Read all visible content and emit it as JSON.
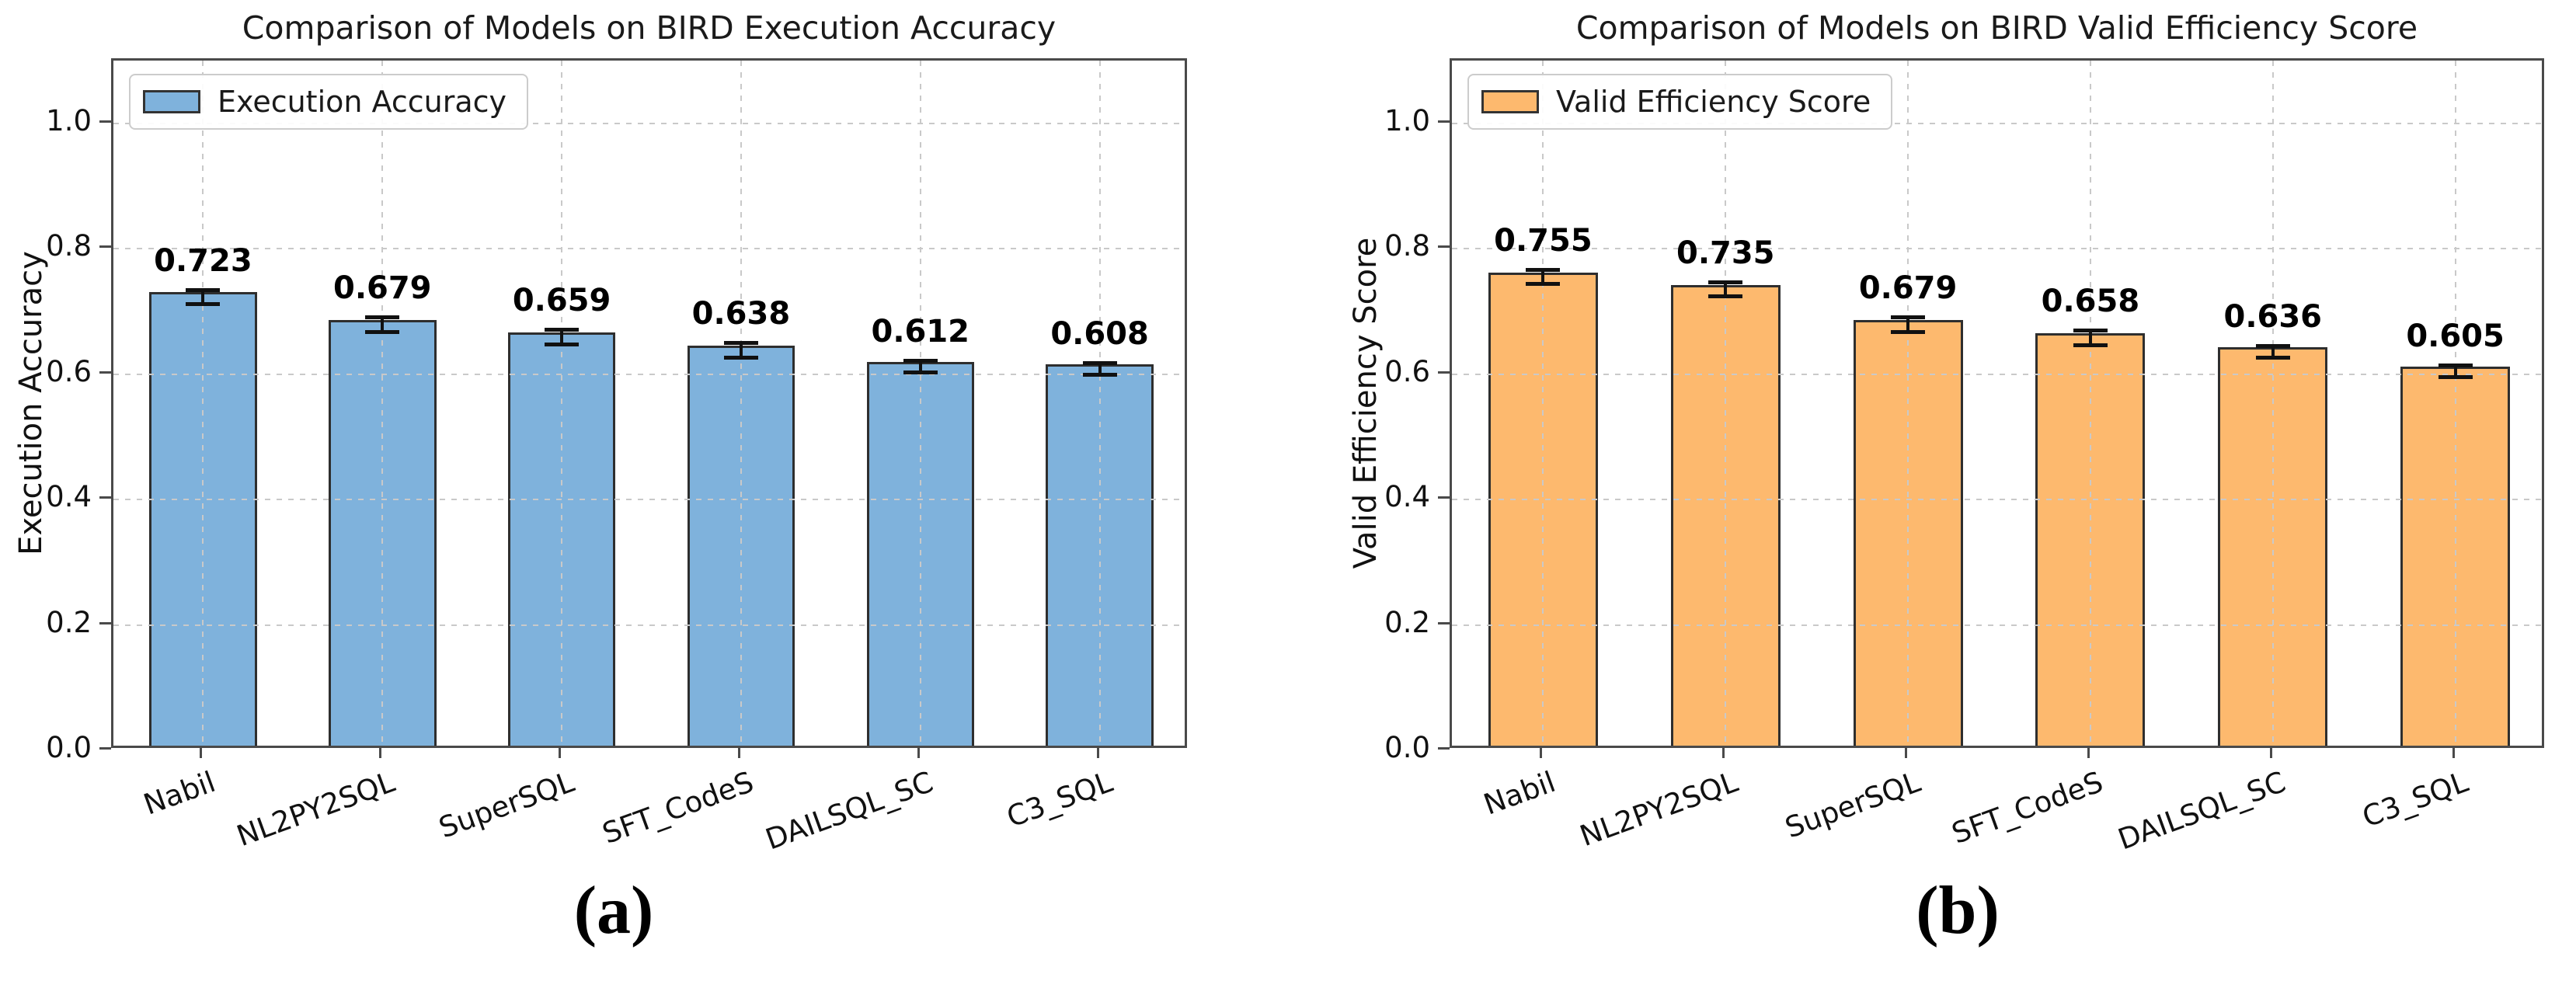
{
  "page": {
    "background": "#ffffff"
  },
  "captions": {
    "a": "(a)",
    "b": "(b)"
  },
  "chart_data": [
    {
      "id": "a",
      "type": "bar",
      "title": "Comparison of Models on BIRD Execution Accuracy",
      "ylabel": "Execution Accuracy",
      "xlabel": "",
      "categories": [
        "Nabil",
        "NL2PY2SQL",
        "SuperSQL",
        "SFT_CodeS",
        "DAILSQL_SC",
        "C3_SQL"
      ],
      "values": [
        0.723,
        0.679,
        0.659,
        0.638,
        0.612,
        0.608
      ],
      "value_labels": [
        "0.723",
        "0.679",
        "0.659",
        "0.638",
        "0.612",
        "0.608"
      ],
      "errors": [
        0.012,
        0.012,
        0.012,
        0.012,
        0.01,
        0.01
      ],
      "legend": {
        "label": "Execution Accuracy",
        "position": "upper left"
      },
      "yticks": [
        0.0,
        0.2,
        0.4,
        0.6,
        0.8,
        1.0
      ],
      "ytick_labels": [
        "0.0",
        "0.2",
        "0.4",
        "0.6",
        "0.8",
        "1.0"
      ],
      "ylim": [
        0,
        1.1
      ],
      "grid": "dashed",
      "bar_color": "#7fb2dc",
      "bar_edge_color": "#2e2e2e",
      "error_color": "#111111",
      "caption": "(a)"
    },
    {
      "id": "b",
      "type": "bar",
      "title": "Comparison of Models on BIRD Valid Efficiency Score",
      "ylabel": "Valid Efficiency Score",
      "xlabel": "",
      "categories": [
        "Nabil",
        "NL2PY2SQL",
        "SuperSQL",
        "SFT_CodeS",
        "DAILSQL_SC",
        "C3_SQL"
      ],
      "values": [
        0.755,
        0.735,
        0.679,
        0.658,
        0.636,
        0.605
      ],
      "value_labels": [
        "0.755",
        "0.735",
        "0.679",
        "0.658",
        "0.636",
        "0.605"
      ],
      "errors": [
        0.012,
        0.012,
        0.012,
        0.012,
        0.01,
        0.01
      ],
      "legend": {
        "label": "Valid Efficiency Score",
        "position": "upper left"
      },
      "yticks": [
        0.0,
        0.2,
        0.4,
        0.6,
        0.8,
        1.0
      ],
      "ytick_labels": [
        "0.0",
        "0.2",
        "0.4",
        "0.6",
        "0.8",
        "1.0"
      ],
      "ylim": [
        0,
        1.1
      ],
      "grid": "dashed",
      "bar_color": "#fdb96e",
      "bar_edge_color": "#2e2e2e",
      "error_color": "#111111",
      "caption": "(b)"
    }
  ]
}
